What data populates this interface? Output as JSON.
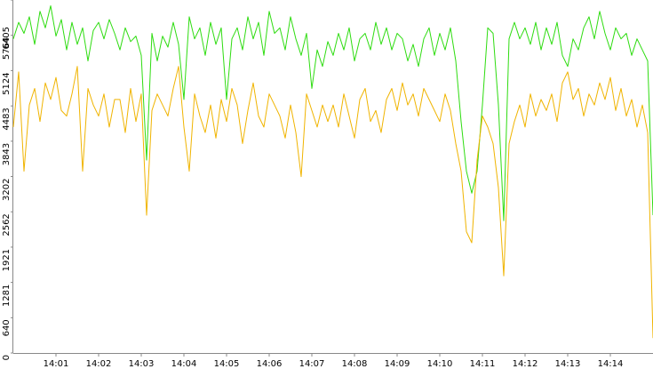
{
  "chart_data": {
    "type": "line",
    "x": [
      840,
      840.125,
      840.25,
      840.375,
      840.5,
      840.625,
      840.75,
      840.875,
      841,
      841.125,
      841.25,
      841.375,
      841.5,
      841.625,
      841.75,
      841.875,
      842,
      842.125,
      842.25,
      842.375,
      842.5,
      842.625,
      842.75,
      842.875,
      843,
      843.125,
      843.25,
      843.375,
      843.5,
      843.625,
      843.75,
      843.875,
      844,
      844.125,
      844.25,
      844.375,
      844.5,
      844.625,
      844.75,
      844.875,
      845,
      845.125,
      845.25,
      845.375,
      845.5,
      845.625,
      845.75,
      845.875,
      846,
      846.125,
      846.25,
      846.375,
      846.5,
      846.625,
      846.75,
      846.875,
      847,
      847.125,
      847.25,
      847.375,
      847.5,
      847.625,
      847.75,
      847.875,
      848,
      848.125,
      848.25,
      848.375,
      848.5,
      848.625,
      848.75,
      848.875,
      849,
      849.125,
      849.25,
      849.375,
      849.5,
      849.625,
      849.75,
      849.875,
      850,
      850.125,
      850.25,
      850.375,
      850.5,
      850.625,
      850.75,
      850.875,
      851,
      851.125,
      851.25,
      851.375,
      851.5,
      851.625,
      851.75,
      851.875,
      852,
      852.125,
      852.25,
      852.375,
      852.5,
      852.625,
      852.75,
      852.875,
      853,
      853.125,
      853.25,
      853.375,
      853.5,
      853.625,
      853.75,
      853.875,
      854,
      854.125,
      854.25,
      854.375,
      854.5,
      854.625,
      854.75,
      854.875,
      855
    ],
    "series": [
      {
        "color": "#2edc10",
        "values": [
          5700,
          6000,
          5800,
          6100,
          5600,
          6200,
          5900,
          6300,
          5750,
          6050,
          5500,
          6000,
          5600,
          5900,
          5300,
          5850,
          6000,
          5700,
          6050,
          5800,
          5500,
          5900,
          5650,
          5750,
          5400,
          3500,
          5800,
          5300,
          5750,
          5550,
          6000,
          5600,
          4600,
          6100,
          5700,
          5900,
          5400,
          6000,
          5600,
          5900,
          4600,
          5700,
          5900,
          5500,
          6100,
          5700,
          6000,
          5400,
          6200,
          5800,
          5900,
          5500,
          6100,
          5700,
          5400,
          5800,
          4800,
          5500,
          5200,
          5650,
          5400,
          5800,
          5500,
          5900,
          5300,
          5700,
          5800,
          5500,
          6000,
          5600,
          5900,
          5500,
          5800,
          5700,
          5300,
          5600,
          5200,
          5700,
          5900,
          5400,
          5800,
          5500,
          5900,
          5300,
          4200,
          3300,
          2900,
          3300,
          4500,
          5900,
          5800,
          4500,
          2400,
          5700,
          6000,
          5700,
          5900,
          5600,
          6000,
          5500,
          5900,
          5600,
          6000,
          5400,
          5200,
          5700,
          5500,
          5900,
          6100,
          5700,
          6200,
          5800,
          5500,
          5900,
          5700,
          5800,
          5400,
          5700,
          5500,
          5300,
          2500
        ]
      },
      {
        "color": "#f0b400",
        "values": [
          4100,
          5100,
          3300,
          4500,
          4800,
          4200,
          4900,
          4600,
          5000,
          4400,
          4300,
          4700,
          5200,
          3300,
          4800,
          4500,
          4300,
          4700,
          4100,
          4600,
          4600,
          4000,
          4800,
          4200,
          4700,
          2500,
          4400,
          4700,
          4500,
          4300,
          4800,
          5200,
          4100,
          3300,
          4700,
          4300,
          4000,
          4500,
          3900,
          4600,
          4200,
          4800,
          4500,
          3800,
          4400,
          4900,
          4300,
          4100,
          4700,
          4500,
          4300,
          3900,
          4500,
          4000,
          3200,
          4700,
          4400,
          4100,
          4500,
          4200,
          4500,
          4100,
          4700,
          4300,
          3900,
          4600,
          4800,
          4200,
          4400,
          4000,
          4600,
          4800,
          4400,
          4900,
          4500,
          4700,
          4300,
          4800,
          4600,
          4400,
          4200,
          4700,
          4400,
          3800,
          3300,
          2200,
          2000,
          3500,
          4300,
          4100,
          3800,
          3000,
          1400,
          3800,
          4200,
          4500,
          4100,
          4700,
          4300,
          4600,
          4400,
          4700,
          4200,
          4900,
          5100,
          4600,
          4800,
          4300,
          4700,
          4500,
          4900,
          4600,
          5000,
          4400,
          4800,
          4300,
          4600,
          4100,
          4500,
          4000,
          270
        ]
      }
    ],
    "xlim": [
      840,
      855
    ],
    "xticks": [
      {
        "value": 841,
        "label": "14:01"
      },
      {
        "value": 842,
        "label": "14:02"
      },
      {
        "value": 843,
        "label": "14:03"
      },
      {
        "value": 844,
        "label": "14:04"
      },
      {
        "value": 845,
        "label": "14:05"
      },
      {
        "value": 846,
        "label": "14:06"
      },
      {
        "value": 847,
        "label": "14:07"
      },
      {
        "value": 848,
        "label": "14:08"
      },
      {
        "value": 849,
        "label": "14:09"
      },
      {
        "value": 850,
        "label": "14:10"
      },
      {
        "value": 851,
        "label": "14:11"
      },
      {
        "value": 852,
        "label": "14:12"
      },
      {
        "value": 853,
        "label": "14:13"
      },
      {
        "value": 854,
        "label": "14:14"
      }
    ],
    "ylim": [
      0,
      6405
    ],
    "yticks": [
      0,
      640,
      1281,
      1921,
      2562,
      3202,
      3843,
      4483,
      5124,
      5764,
      6405
    ]
  }
}
